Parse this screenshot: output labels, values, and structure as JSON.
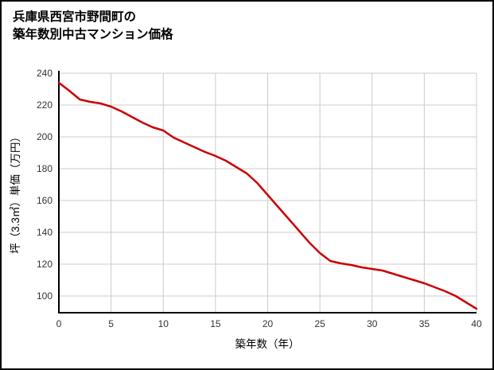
{
  "page": {
    "background": "#ffffff",
    "border_color": "#000000"
  },
  "title": {
    "line1": "兵庫県西宮市野間町の",
    "line2": "築年数別中古マンション価格"
  },
  "chart_data": {
    "type": "line",
    "title": "兵庫県西宮市野間町の築年数別中古マンション価格",
    "xlabel": "築年数（年）",
    "ylabel": "坪（3.3㎡）単価（万円）",
    "xlim": [
      0,
      40
    ],
    "ylim": [
      89.5,
      240
    ],
    "xticks": [
      0,
      5,
      10,
      15,
      20,
      25,
      30,
      35,
      40
    ],
    "yticks": [
      100,
      120,
      140,
      160,
      180,
      200,
      220,
      240
    ],
    "grid": true,
    "legend_position": "none",
    "line_color": "#cc0000",
    "grid_color": "#cccccc",
    "axis_color": "#000000",
    "x": [
      0,
      1,
      2,
      3,
      4,
      5,
      6,
      7,
      8,
      9,
      10,
      11,
      12,
      13,
      14,
      15,
      16,
      17,
      18,
      19,
      20,
      21,
      22,
      23,
      24,
      25,
      26,
      27,
      28,
      29,
      30,
      31,
      32,
      33,
      34,
      35,
      36,
      37,
      38,
      39,
      40
    ],
    "y": [
      234,
      229,
      223.5,
      222,
      221,
      219,
      216,
      212.5,
      209,
      206,
      204,
      199.5,
      196.5,
      193.5,
      190.5,
      188,
      185,
      181,
      177,
      171,
      163.5,
      156,
      148.5,
      141,
      133.5,
      127,
      122,
      120.5,
      119.5,
      118,
      117,
      116,
      114,
      112,
      110,
      108,
      105.5,
      103,
      100,
      96,
      92
    ]
  }
}
